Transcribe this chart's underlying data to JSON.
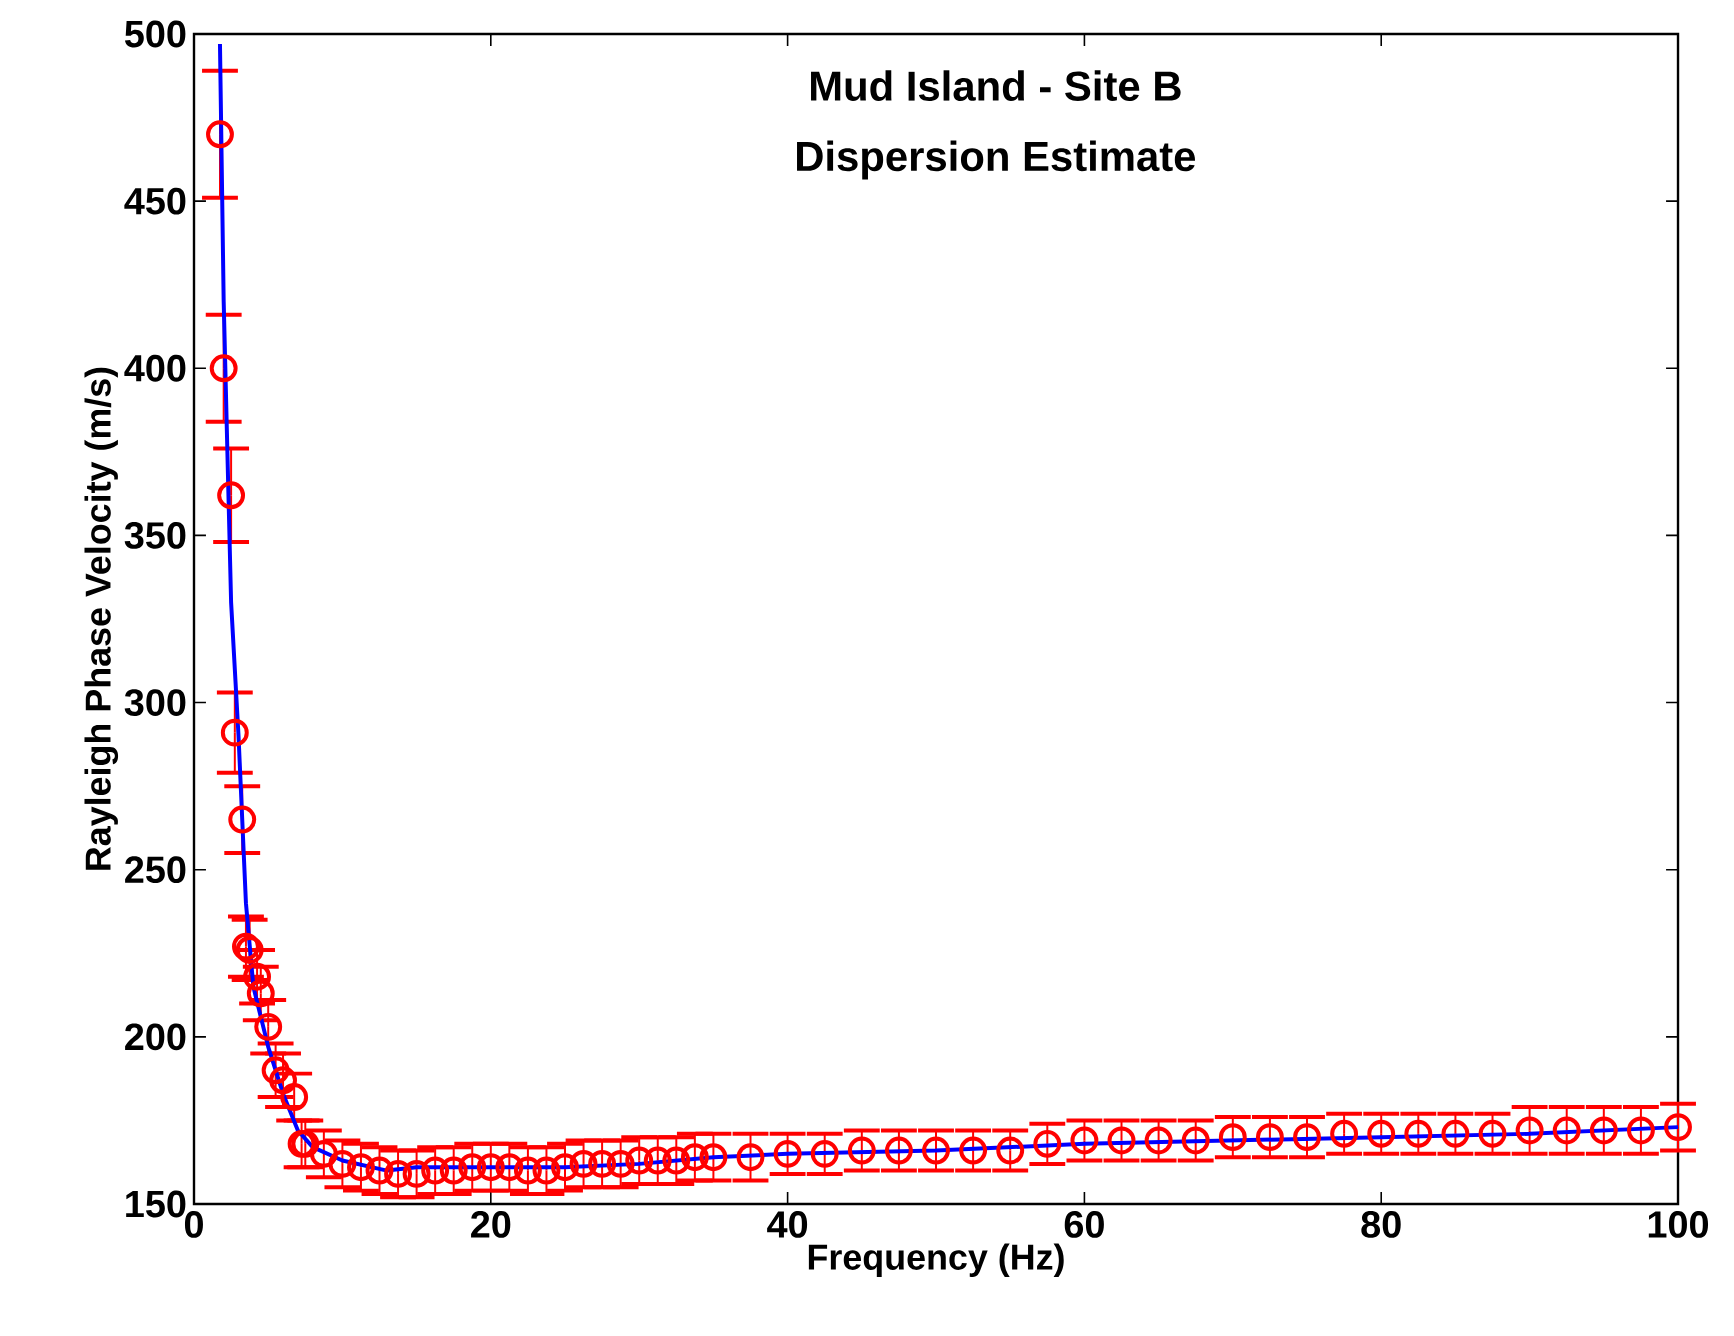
{
  "chart_data": {
    "type": "scatter",
    "title": "Mud Island - Site B",
    "subtitle": "Dispersion Estimate",
    "xlabel": "Frequency (Hz)",
    "ylabel": "Rayleigh Phase Velocity (m/s)",
    "xlim": [
      0,
      100
    ],
    "ylim": [
      150,
      500
    ],
    "xticks": [
      0,
      20,
      40,
      60,
      80,
      100
    ],
    "yticks": [
      150,
      200,
      250,
      300,
      350,
      400,
      450,
      500
    ],
    "series": [
      {
        "marker": "circle",
        "color": "#ff0000",
        "x": [
          1.75,
          2,
          2.5,
          2.75,
          3.25,
          3.5,
          3.75,
          4.25,
          4.5,
          5,
          5.5,
          6,
          6.75,
          7.25,
          7.5,
          8.75,
          10,
          11.25,
          12.5,
          13.75,
          15,
          16.25,
          17.5,
          18.75,
          20,
          21.25,
          22.5,
          23.75,
          25,
          26.25,
          27.5,
          28.75,
          30,
          31.25,
          32.5,
          33.75,
          35,
          37.5,
          40,
          42.5,
          45,
          47.5,
          50,
          52.5,
          55,
          57.5,
          60,
          62.5,
          65,
          67.5,
          70,
          72.5,
          75,
          77.5,
          80,
          82.5,
          85,
          87.5,
          90,
          92.5,
          95,
          97.5,
          100
        ],
        "values": [
          470,
          400,
          362,
          291,
          265,
          227,
          226,
          218,
          213,
          203,
          190,
          187,
          182,
          168,
          168,
          165,
          162,
          161,
          160,
          159,
          159,
          160,
          160,
          161,
          161,
          161,
          160,
          160,
          161,
          162,
          162,
          162,
          163,
          163,
          163,
          164,
          164,
          164,
          165,
          165,
          166,
          166,
          166,
          166,
          166,
          168,
          169,
          169,
          169,
          169,
          170,
          170,
          170,
          171,
          171,
          171,
          171,
          171,
          172,
          172,
          172,
          172,
          173
        ],
        "errors": [
          19,
          16,
          14,
          12,
          10,
          9,
          9,
          8,
          8,
          8,
          8,
          8,
          7,
          7,
          7,
          7,
          7,
          7,
          7,
          7,
          7,
          7,
          7,
          7,
          7,
          7,
          7,
          7,
          7,
          7,
          7,
          7,
          7,
          7,
          7,
          7,
          7,
          7,
          6,
          6,
          6,
          6,
          6,
          6,
          6,
          6,
          6,
          6,
          6,
          6,
          6,
          6,
          6,
          6,
          6,
          6,
          6,
          6,
          7,
          7,
          7,
          7,
          7
        ]
      },
      {
        "type": "line",
        "marker": "none",
        "color": "#0000ff",
        "x": [
          1.75,
          2,
          2.5,
          3,
          3.5,
          4,
          5,
          6,
          7,
          8,
          10,
          13,
          15,
          20,
          25,
          30,
          35,
          40,
          50,
          60,
          70,
          80,
          90,
          100
        ],
        "values": [
          497,
          420,
          330,
          290,
          240,
          215,
          197,
          183,
          172,
          167,
          163,
          160,
          161,
          161,
          161,
          162,
          164,
          165,
          166,
          168,
          169,
          170,
          171,
          173
        ]
      }
    ]
  }
}
